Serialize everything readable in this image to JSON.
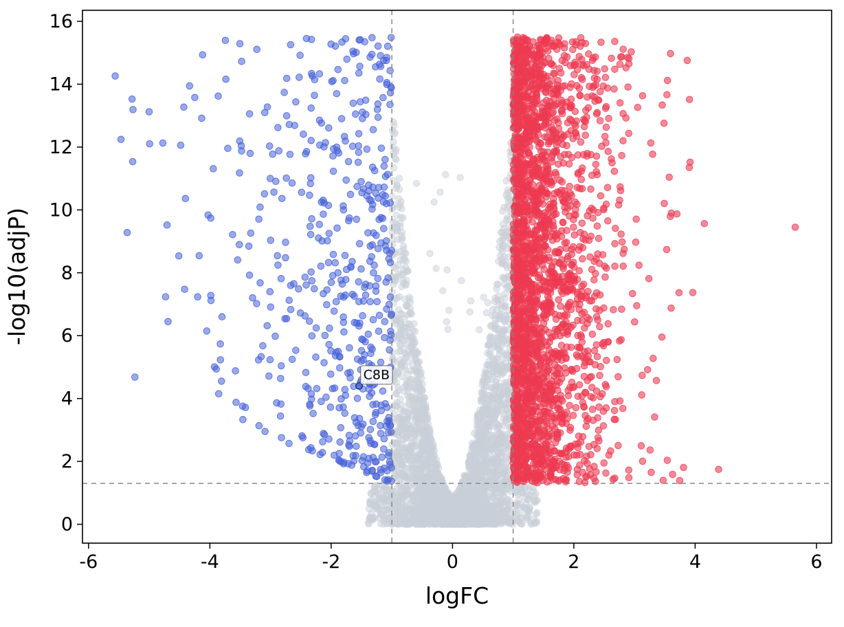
{
  "chart_data": {
    "type": "scatter",
    "subtype": "volcano-plot",
    "title": "",
    "xlabel": "logFC",
    "ylabel": "-log10(adjP)",
    "xlim": [
      -6.1,
      6.25
    ],
    "ylim": [
      -0.6,
      16.35
    ],
    "xticks": [
      -6,
      -4,
      -2,
      0,
      2,
      4,
      6
    ],
    "yticks": [
      0,
      2,
      4,
      6,
      8,
      10,
      12,
      14,
      16
    ],
    "grid": false,
    "legend": "none",
    "background": "#ffffff",
    "axis_color": "#000000",
    "threshold_lines": {
      "color": "#878787",
      "style": "dashed",
      "vertical_x": [
        -1,
        1
      ],
      "horizontal_y": 1.301
    },
    "marker_radius": 4.8,
    "series": [
      {
        "name": "not-significant",
        "color": "#c9d0d8",
        "opacity": 0.5,
        "edge_opacity": 0.55,
        "count": 3300,
        "seed": 11,
        "kind": "ns",
        "shape": {
          "ymax_base": 0.9,
          "ymax_gain": 12.8,
          "ymax_pow": 1.8,
          "y_pow": 1.6,
          "spill_frac": 0.05,
          "spill_x_spread": 0.4,
          "spill_y_max": 1.25,
          "stray_every": 170,
          "stray_y_min": 5.5,
          "stray_y_span": 6.5,
          "stray_x_spread": 0.7
        }
      },
      {
        "name": "up-regulated",
        "color": "#ed3b51",
        "opacity": 0.6,
        "edge_opacity": 0.85,
        "count": 2600,
        "seed": 23,
        "kind": "up",
        "shape": {
          "x_min": 1.0,
          "x_max": 4.55,
          "x_scale": 0.5,
          "y_min": 1.32,
          "y_max": 15.5,
          "y_pow": 1.05
        }
      },
      {
        "name": "down-regulated",
        "color": "#4763d9",
        "opacity": 0.55,
        "edge_opacity": 0.9,
        "count": 520,
        "seed": 37,
        "kind": "down",
        "shape": {
          "x_min": -5.6,
          "x_max": -1.0,
          "x_scale": 1.05,
          "y_min": 1.32,
          "y_max": 15.5,
          "far_t_div": 3.8,
          "far_y_lift": 2.8,
          "y_pow_near": 1.55,
          "y_pow_far": 0.7
        }
      }
    ],
    "extra_points": [
      {
        "series": "up-regulated",
        "x": 5.65,
        "y": 9.45
      }
    ],
    "annotations": [
      {
        "label": "C8B",
        "point_x": -1.54,
        "point_y": 4.4,
        "text_x": -1.47,
        "text_y": 4.62,
        "box_color": "#ffffff",
        "box_border": "#666666"
      }
    ]
  }
}
